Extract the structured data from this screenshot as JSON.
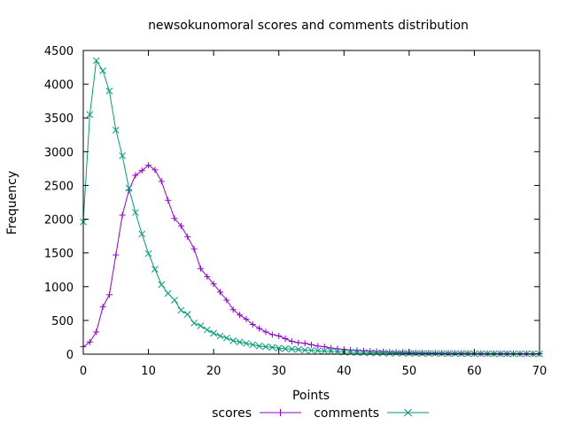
{
  "chart_data": {
    "type": "line",
    "title": "newsokunomoral scores and comments distribution",
    "xlabel": "Points",
    "ylabel": "Frequency",
    "xlim": [
      0,
      70
    ],
    "ylim": [
      0,
      4500
    ],
    "xticks": [
      0,
      10,
      20,
      30,
      40,
      50,
      60,
      70
    ],
    "yticks": [
      0,
      500,
      1000,
      1500,
      2000,
      2500,
      3000,
      3500,
      4000,
      4500
    ],
    "grid": false,
    "legend_position": "bottom-center",
    "series": [
      {
        "name": "scores",
        "color": "#9400d3",
        "marker": "plus",
        "x": [
          0,
          1,
          2,
          3,
          4,
          5,
          6,
          7,
          8,
          9,
          10,
          11,
          12,
          13,
          14,
          15,
          16,
          17,
          18,
          19,
          20,
          21,
          22,
          23,
          24,
          25,
          26,
          27,
          28,
          29,
          30,
          31,
          32,
          33,
          34,
          35,
          36,
          37,
          38,
          39,
          40,
          41,
          42,
          43,
          44,
          45,
          46,
          47,
          48,
          49,
          50,
          51,
          52,
          53,
          54,
          55,
          56,
          57,
          58,
          59,
          60,
          61,
          62,
          63,
          64,
          65,
          66,
          67,
          68,
          69,
          70
        ],
        "y": [
          110,
          180,
          330,
          700,
          880,
          1470,
          2060,
          2430,
          2650,
          2720,
          2800,
          2730,
          2560,
          2280,
          2010,
          1900,
          1740,
          1560,
          1270,
          1150,
          1040,
          920,
          800,
          660,
          580,
          520,
          440,
          380,
          330,
          290,
          270,
          230,
          190,
          170,
          160,
          140,
          120,
          110,
          90,
          80,
          70,
          60,
          55,
          50,
          45,
          40,
          35,
          32,
          30,
          28,
          25,
          22,
          20,
          20,
          18,
          16,
          15,
          15,
          14,
          13,
          12,
          11,
          10,
          10,
          10,
          9,
          9,
          8,
          8,
          7,
          7
        ]
      },
      {
        "name": "comments",
        "color": "#009e73",
        "marker": "cross",
        "x": [
          0,
          1,
          2,
          3,
          4,
          5,
          6,
          7,
          8,
          9,
          10,
          11,
          12,
          13,
          14,
          15,
          16,
          17,
          18,
          19,
          20,
          21,
          22,
          23,
          24,
          25,
          26,
          27,
          28,
          29,
          30,
          31,
          32,
          33,
          34,
          35,
          36,
          37,
          38,
          39,
          40,
          41,
          42,
          43,
          44,
          45,
          46,
          47,
          48,
          49,
          50,
          51,
          52,
          53,
          54,
          55,
          56,
          57,
          58,
          59,
          60,
          61,
          62,
          63,
          64,
          65,
          66,
          67,
          68,
          69,
          70
        ],
        "y": [
          1960,
          3550,
          4350,
          4200,
          3900,
          3320,
          2940,
          2460,
          2100,
          1780,
          1490,
          1260,
          1030,
          900,
          800,
          650,
          590,
          460,
          420,
          360,
          310,
          270,
          240,
          200,
          180,
          160,
          140,
          120,
          110,
          100,
          90,
          80,
          75,
          70,
          60,
          55,
          50,
          45,
          40,
          35,
          30,
          28,
          25,
          22,
          20,
          18,
          16,
          15,
          14,
          13,
          12,
          11,
          10,
          10,
          9,
          9,
          8,
          8,
          7,
          7,
          6,
          6,
          6,
          5,
          5,
          5,
          4,
          4,
          4,
          4,
          3
        ]
      }
    ]
  }
}
